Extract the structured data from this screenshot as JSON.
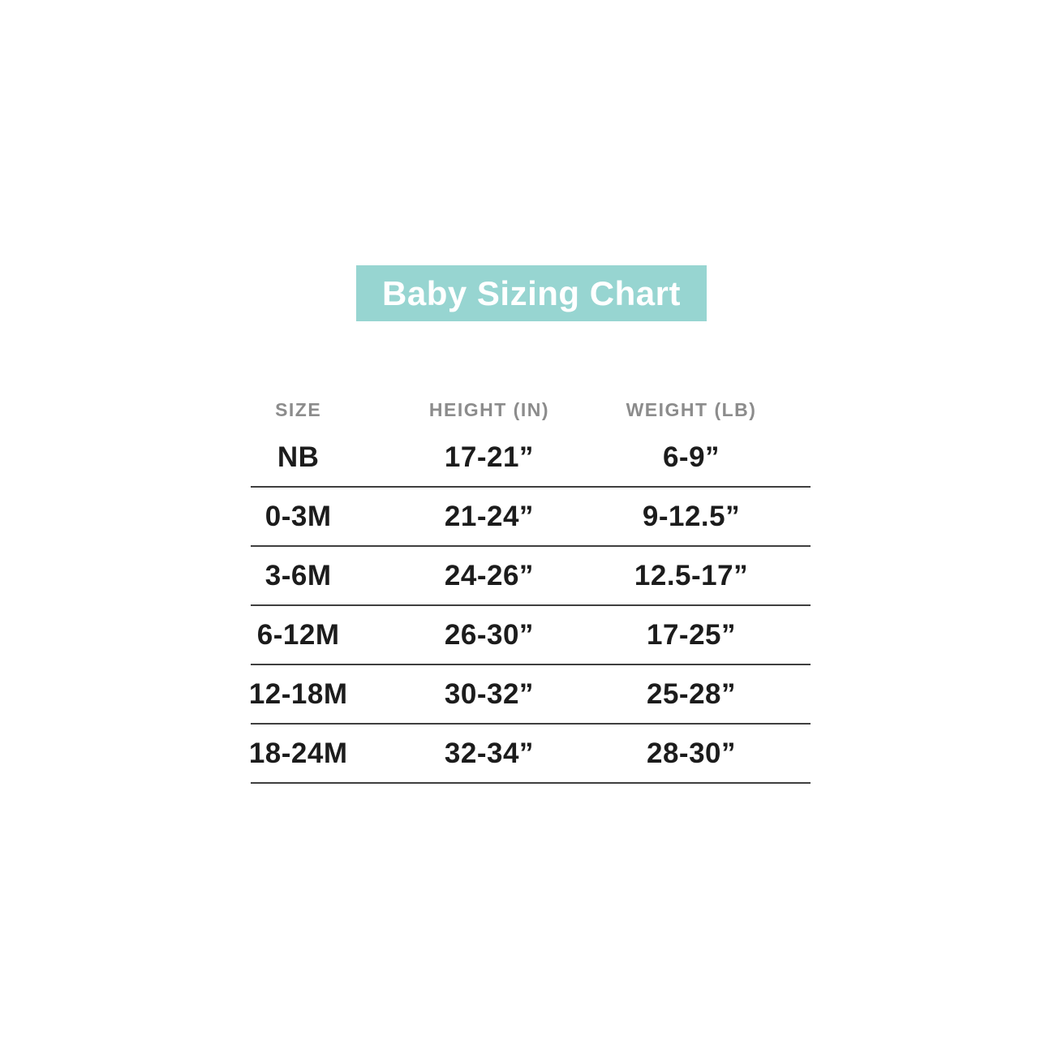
{
  "title": "Baby Sizing Chart",
  "chart_data": {
    "type": "table",
    "title": "Baby Sizing Chart",
    "headers": [
      "SIZE",
      "HEIGHT (IN)",
      "WEIGHT (LB)"
    ],
    "rows": [
      [
        "NB",
        "17-21”",
        "6-9”"
      ],
      [
        "0-3M",
        "21-24”",
        "9-12.5”"
      ],
      [
        "3-6M",
        "24-26”",
        "12.5-17”"
      ],
      [
        "6-12M",
        "26-30”",
        "17-25”"
      ],
      [
        "12-18M",
        "30-32”",
        "25-28”"
      ],
      [
        "18-24M",
        "32-34”",
        "28-30”"
      ]
    ]
  },
  "colors": {
    "banner": "#97d5d1",
    "title_text": "#ffffff",
    "header_text": "#8c8c8c",
    "data_text": "#1c1c1c",
    "divider_line": "#3f3f3f",
    "background": "#ffffff"
  }
}
